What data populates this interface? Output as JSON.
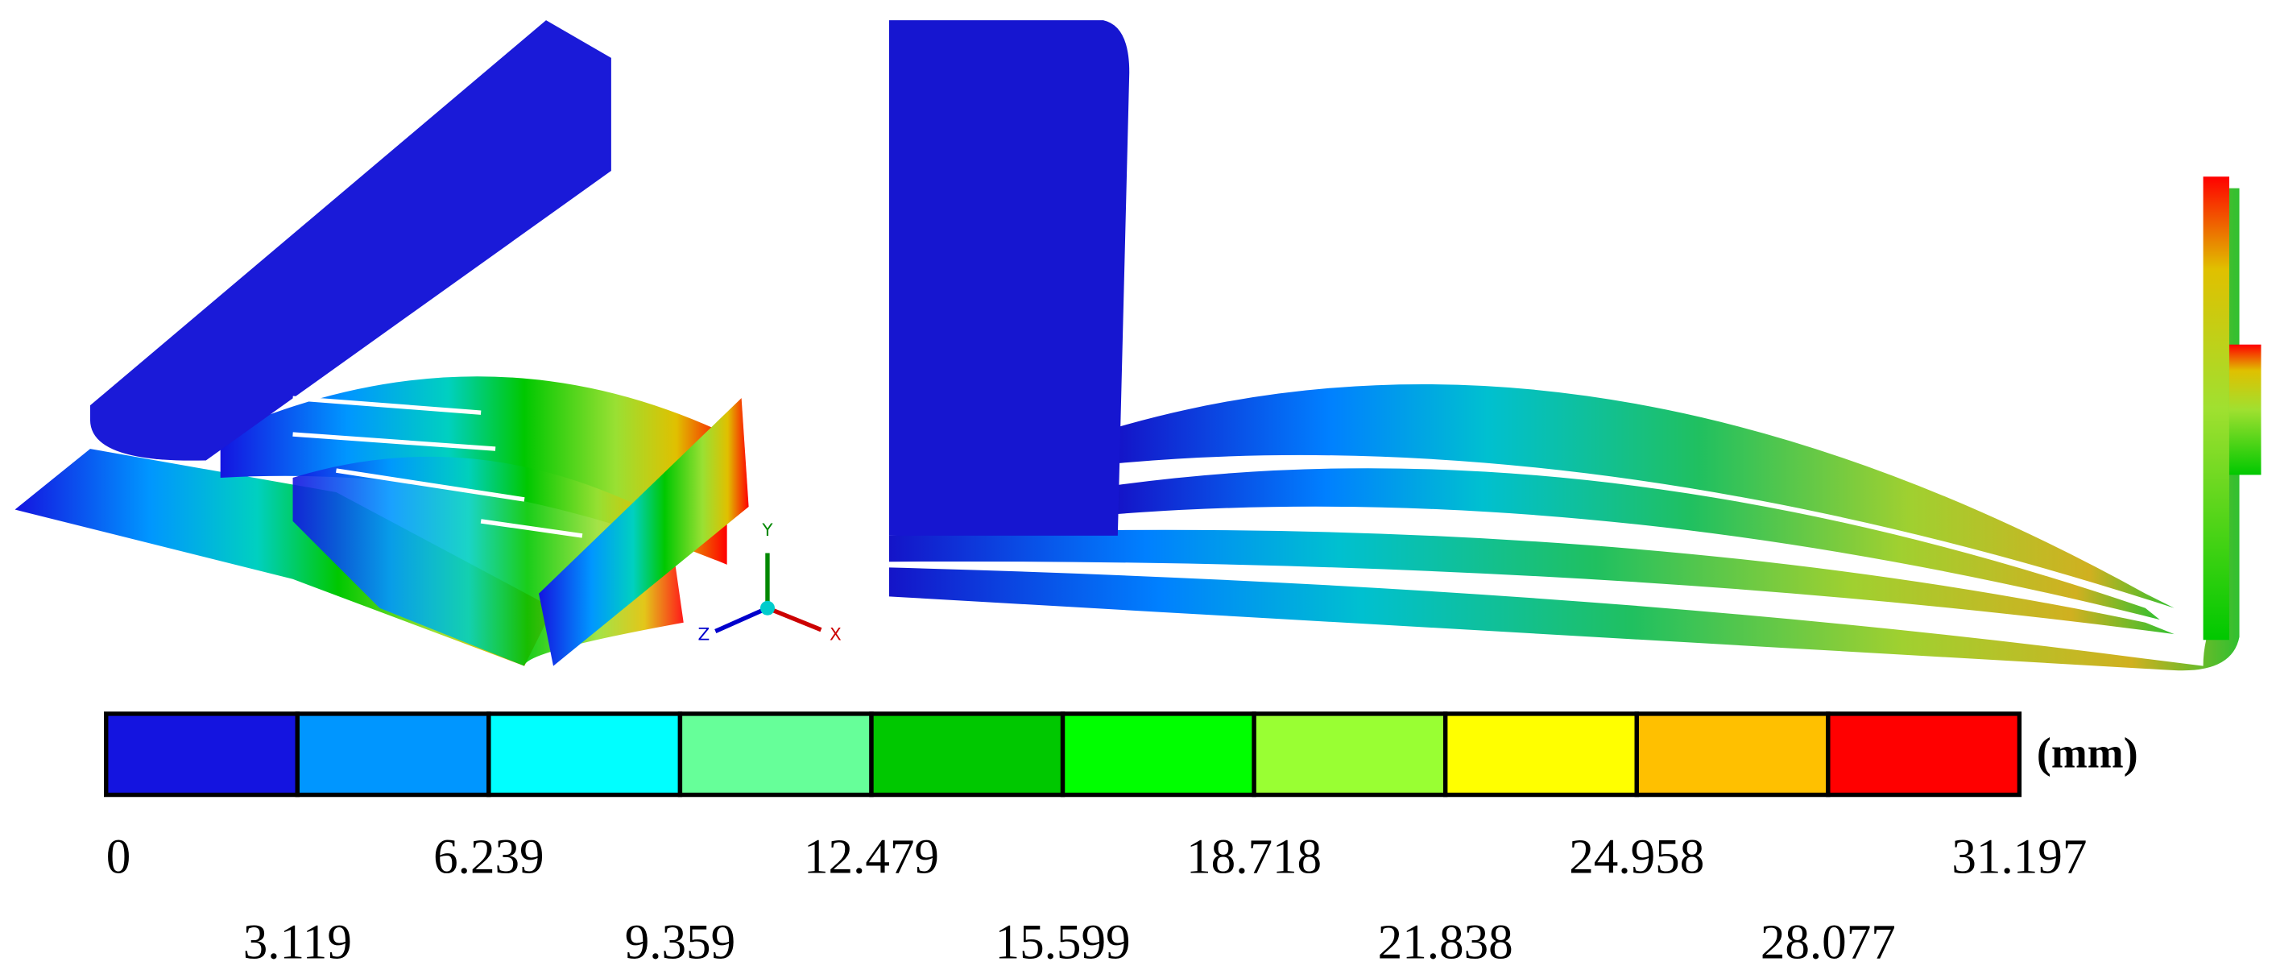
{
  "legend": {
    "unit": "(mm)",
    "colors": [
      "#1414e0",
      "#0096ff",
      "#00ffff",
      "#66ff99",
      "#00c800",
      "#00ff00",
      "#99ff33",
      "#ffff00",
      "#ffc000",
      "#ff0000"
    ],
    "ticks": [
      "0",
      "3.119",
      "6.239",
      "9.359",
      "12.479",
      "15.599",
      "18.718",
      "21.838",
      "24.958",
      "28.077",
      "31.197"
    ]
  },
  "triad": {
    "x": "X",
    "y": "Y",
    "z": "Z"
  }
}
